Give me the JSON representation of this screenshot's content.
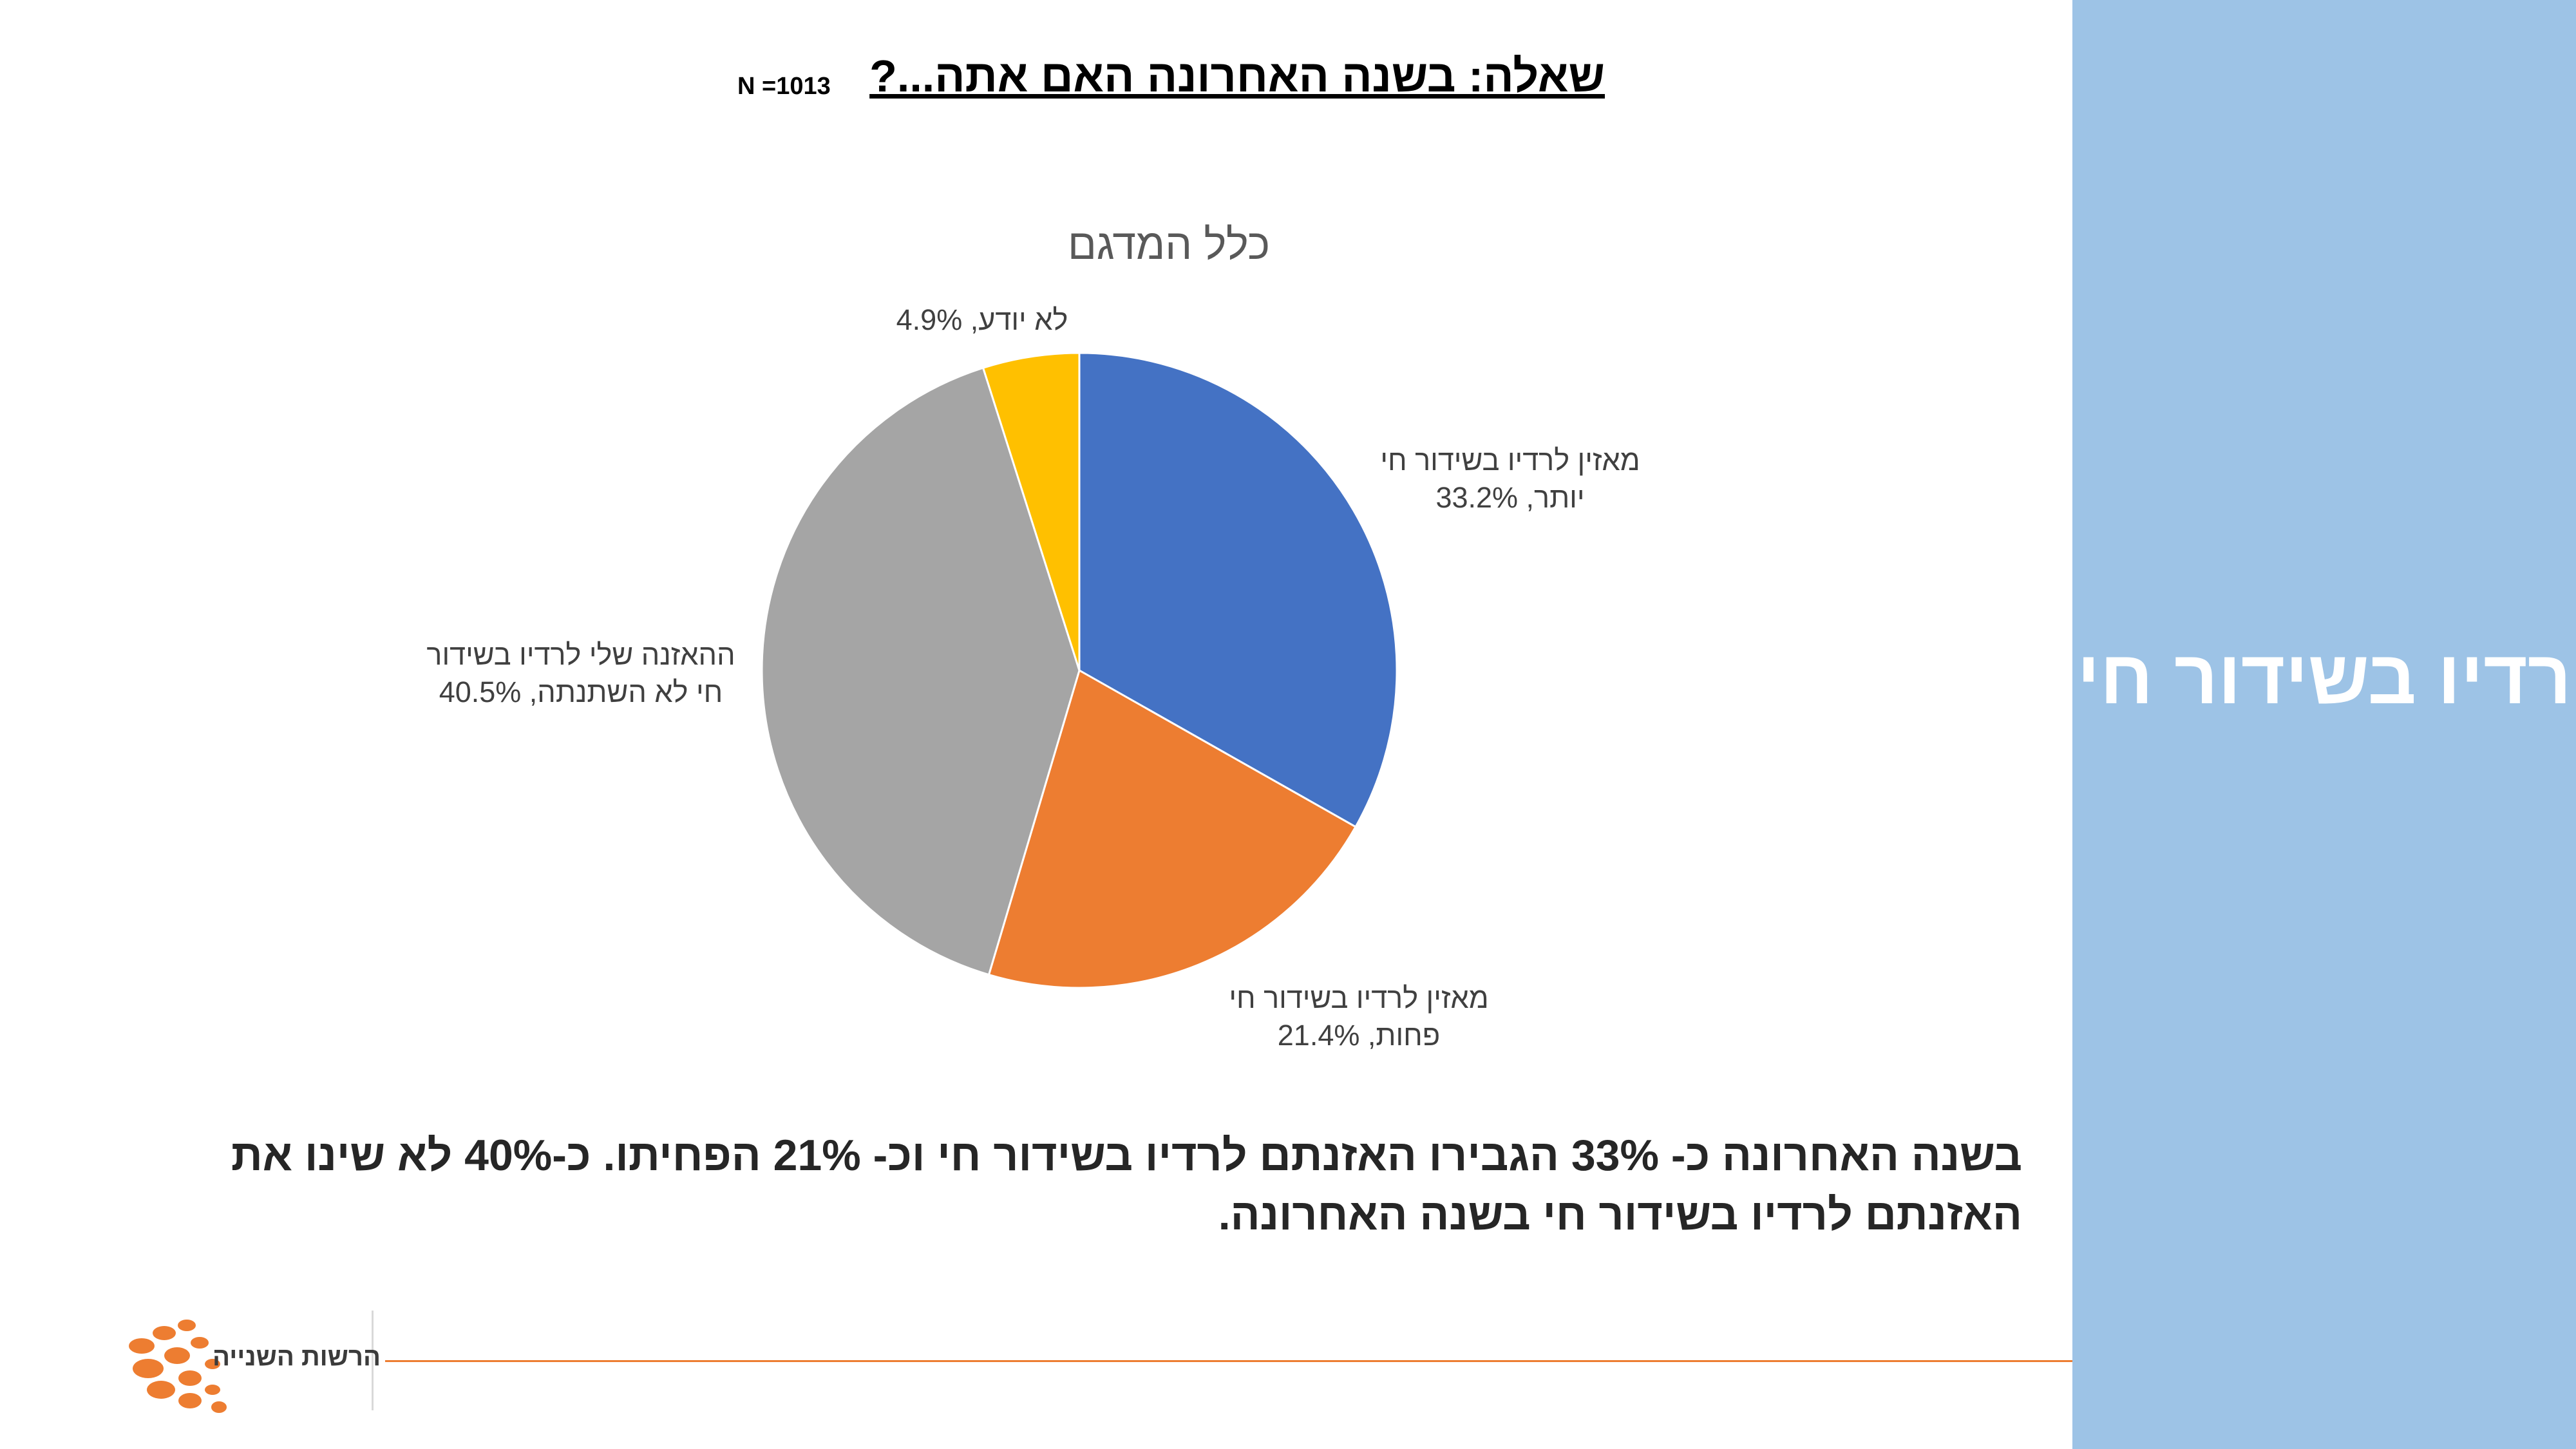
{
  "slide": {
    "sidebar_title": "רדיו בשידור חי",
    "question": "שאלה: בשנה האחרונה האם אתה...?",
    "sample_size": "N =1013",
    "summary": "בשנה האחרונה כ- 33% הגבירו האזנתם לרדיו בשידור חי וכ- 21% הפחיתו. כ-40% לא שינו את האזנתם לרדיו בשידור חי בשנה האחרונה.",
    "logo_text": "הרשות השנייה"
  },
  "colors": {
    "blue": "#4472c4",
    "orange": "#ed7d31",
    "gray": "#a5a5a5",
    "yellow": "#ffc000",
    "sidebar": "#9dc3e6"
  },
  "chart_data": {
    "type": "pie",
    "title": "כלל המדגם",
    "start_angle_deg": 0,
    "direction": "clockwise",
    "slices": [
      {
        "label_lines": [
          "מאזין לרדיו בשידור חי",
          "יותר, 33.2%"
        ],
        "value": 33.2,
        "color": "#4472c4"
      },
      {
        "label_lines": [
          "מאזין לרדיו בשידור חי",
          "פחות, 21.4%"
        ],
        "value": 21.4,
        "color": "#ed7d31"
      },
      {
        "label_lines": [
          "ההאזנה שלי לרדיו בשידור",
          "חי לא השתנתה, 40.5%"
        ],
        "value": 40.5,
        "color": "#a5a5a5"
      },
      {
        "label_lines": [
          "לא יודע, 4.9%"
        ],
        "value": 4.9,
        "color": "#ffc000"
      }
    ]
  }
}
